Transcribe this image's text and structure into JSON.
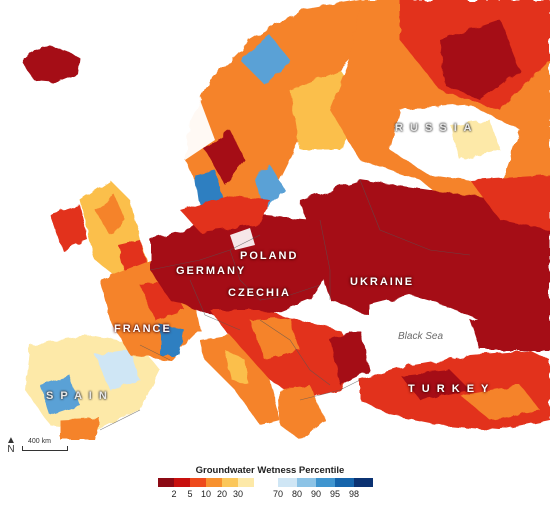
{
  "map": {
    "labels": {
      "russia": "R U S S I A",
      "poland": "POLAND",
      "germany": "GERMANY",
      "czechia": "CZECHIA",
      "ukraine": "UKRAINE",
      "france": "FRANCE",
      "spain": "S P A I N",
      "turkey": "T U R K E Y",
      "black_sea": "Black Sea"
    },
    "scale": "400 km",
    "north": "N"
  },
  "legend": {
    "title": "Groundwater Wetness Percentile",
    "dry_ticks": [
      "2",
      "5",
      "10",
      "20",
      "30"
    ],
    "wet_ticks": [
      "70",
      "80",
      "90",
      "95",
      "98"
    ],
    "dry_colors": [
      "#8c0a14",
      "#c8100e",
      "#ee4a1c",
      "#f7912f",
      "#fbc75a",
      "#fde9a8"
    ],
    "wet_colors": [
      "#cfe6f5",
      "#8cc3e6",
      "#3f95cf",
      "#1564ab",
      "#0b3272"
    ]
  },
  "colors": {
    "severe_drought": "#a50f15",
    "drought": "#e2301a",
    "moderate": "#f5832b",
    "mild": "#fbbf4c",
    "water": "#ffffff",
    "wet": "#2f7fc1",
    "borders": "#555555"
  }
}
